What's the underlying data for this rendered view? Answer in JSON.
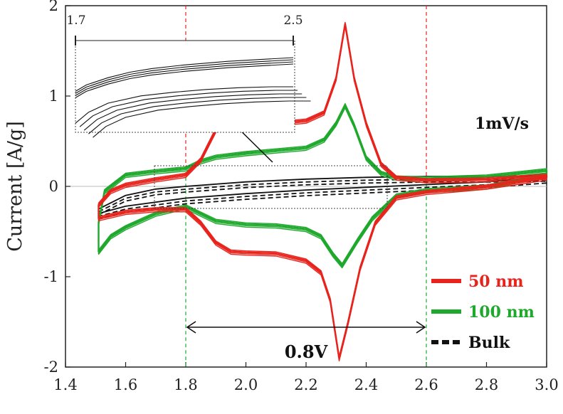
{
  "chart_data": {
    "type": "line",
    "ylabel": "Current [A/g]",
    "xlim": [
      1.4,
      3.0
    ],
    "ylim": [
      -2,
      2
    ],
    "x_ticks": [
      "1.4",
      "1.6",
      "1.8",
      "2.0",
      "2.2",
      "2.4",
      "2.6",
      "2.8",
      "3.0"
    ],
    "y_ticks": [
      "2",
      "1",
      "0",
      "-1",
      "-2"
    ],
    "annotation_rate": "1mV/s",
    "annotation_span": "0.8V",
    "dashed_markers_x": [
      1.8,
      2.6
    ],
    "inset_ticks": [
      "1.7",
      "2.5"
    ],
    "legend_position": "bottom-right",
    "series": [
      {
        "name": "50 nm",
        "color": "#e8231c",
        "upper": [
          [
            1.51,
            -0.2
          ],
          [
            1.55,
            -0.05
          ],
          [
            1.6,
            0.02
          ],
          [
            1.7,
            0.08
          ],
          [
            1.8,
            0.13
          ],
          [
            1.85,
            0.3
          ],
          [
            1.9,
            0.63
          ],
          [
            1.95,
            0.69
          ],
          [
            2.0,
            0.7
          ],
          [
            2.1,
            0.7
          ],
          [
            2.2,
            0.73
          ],
          [
            2.26,
            0.82
          ],
          [
            2.3,
            1.2
          ],
          [
            2.33,
            1.8
          ],
          [
            2.36,
            1.2
          ],
          [
            2.4,
            0.7
          ],
          [
            2.45,
            0.25
          ],
          [
            2.5,
            0.1
          ],
          [
            2.6,
            0.07
          ],
          [
            2.8,
            0.08
          ],
          [
            3.0,
            0.12
          ]
        ],
        "lower": [
          [
            3.0,
            0.1
          ],
          [
            2.8,
            0.0
          ],
          [
            2.6,
            -0.06
          ],
          [
            2.5,
            -0.12
          ],
          [
            2.43,
            -0.4
          ],
          [
            2.38,
            -0.9
          ],
          [
            2.34,
            -1.5
          ],
          [
            2.31,
            -1.9
          ],
          [
            2.28,
            -1.25
          ],
          [
            2.25,
            -0.95
          ],
          [
            2.2,
            -0.82
          ],
          [
            2.1,
            -0.74
          ],
          [
            2.0,
            -0.73
          ],
          [
            1.95,
            -0.72
          ],
          [
            1.9,
            -0.62
          ],
          [
            1.85,
            -0.4
          ],
          [
            1.8,
            -0.25
          ],
          [
            1.7,
            -0.25
          ],
          [
            1.6,
            -0.28
          ],
          [
            1.51,
            -0.35
          ]
        ]
      },
      {
        "name": "100 nm",
        "color": "#1ea82c",
        "upper": [
          [
            1.51,
            -0.4
          ],
          [
            1.53,
            -0.05
          ],
          [
            1.6,
            0.13
          ],
          [
            1.7,
            0.17
          ],
          [
            1.8,
            0.2
          ],
          [
            1.85,
            0.28
          ],
          [
            1.9,
            0.33
          ],
          [
            2.0,
            0.37
          ],
          [
            2.1,
            0.4
          ],
          [
            2.2,
            0.43
          ],
          [
            2.26,
            0.52
          ],
          [
            2.3,
            0.7
          ],
          [
            2.33,
            0.9
          ],
          [
            2.36,
            0.68
          ],
          [
            2.4,
            0.32
          ],
          [
            2.45,
            0.15
          ],
          [
            2.5,
            0.1
          ],
          [
            2.6,
            0.09
          ],
          [
            2.8,
            0.11
          ],
          [
            3.0,
            0.18
          ]
        ],
        "lower": [
          [
            3.0,
            0.13
          ],
          [
            2.8,
            0.0
          ],
          [
            2.6,
            -0.04
          ],
          [
            2.5,
            -0.1
          ],
          [
            2.42,
            -0.35
          ],
          [
            2.37,
            -0.6
          ],
          [
            2.32,
            -0.87
          ],
          [
            2.29,
            -0.75
          ],
          [
            2.25,
            -0.55
          ],
          [
            2.2,
            -0.47
          ],
          [
            2.1,
            -0.43
          ],
          [
            2.0,
            -0.42
          ],
          [
            1.9,
            -0.38
          ],
          [
            1.85,
            -0.3
          ],
          [
            1.8,
            -0.22
          ],
          [
            1.7,
            -0.3
          ],
          [
            1.6,
            -0.45
          ],
          [
            1.55,
            -0.55
          ],
          [
            1.51,
            -0.72
          ]
        ]
      },
      {
        "name": "Bulk",
        "color": "#111111",
        "upper": [
          [
            1.51,
            -0.25
          ],
          [
            1.6,
            -0.1
          ],
          [
            1.7,
            -0.03
          ],
          [
            1.8,
            0.0
          ],
          [
            2.0,
            0.05
          ],
          [
            2.2,
            0.08
          ],
          [
            2.4,
            0.1
          ],
          [
            2.6,
            0.11
          ],
          [
            2.8,
            0.11
          ],
          [
            3.0,
            0.12
          ]
        ],
        "lower": [
          [
            3.0,
            0.1
          ],
          [
            2.8,
            0.05
          ],
          [
            2.6,
            0.02
          ],
          [
            2.4,
            -0.01
          ],
          [
            2.2,
            -0.04
          ],
          [
            2.0,
            -0.08
          ],
          [
            1.8,
            -0.13
          ],
          [
            1.6,
            -0.22
          ],
          [
            1.51,
            -0.3
          ]
        ]
      }
    ]
  }
}
